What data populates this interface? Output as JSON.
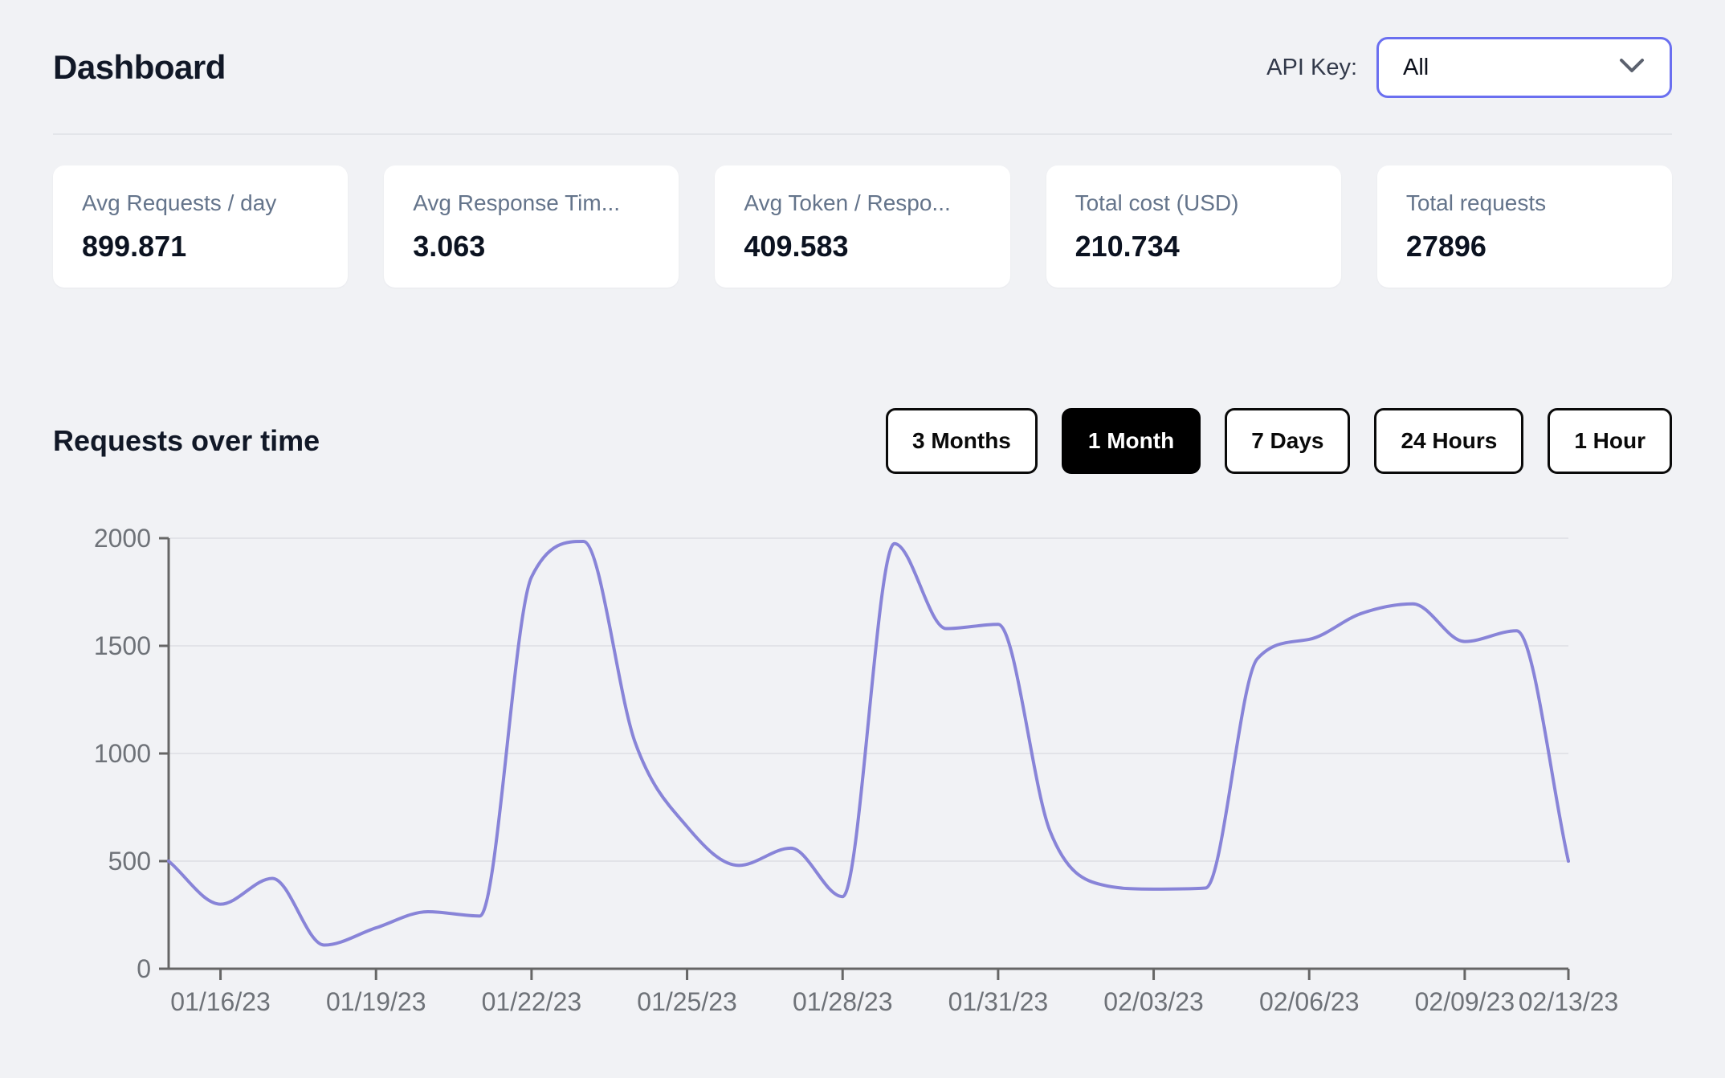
{
  "header": {
    "title": "Dashboard",
    "api_key_label": "API Key:",
    "api_key_value": "All"
  },
  "stats": [
    {
      "label": "Avg Requests / day",
      "value": "899.871"
    },
    {
      "label": "Avg Response Tim...",
      "value": "3.063"
    },
    {
      "label": "Avg Token / Respo...",
      "value": "409.583"
    },
    {
      "label": "Total cost (USD)",
      "value": "210.734"
    },
    {
      "label": "Total requests",
      "value": "27896"
    }
  ],
  "section": {
    "title": "Requests over time"
  },
  "time_ranges": [
    {
      "label": "3 Months",
      "active": false
    },
    {
      "label": "1 Month",
      "active": true
    },
    {
      "label": "7 Days",
      "active": false
    },
    {
      "label": "24 Hours",
      "active": false
    },
    {
      "label": "1 Hour",
      "active": false
    }
  ],
  "chart_data": {
    "type": "line",
    "series_name": "Requests",
    "x": [
      "01/15/23",
      "01/16/23",
      "01/17/23",
      "01/18/23",
      "01/19/23",
      "01/20/23",
      "01/21/23",
      "01/22/23",
      "01/23/23",
      "01/24/23",
      "01/25/23",
      "01/26/23",
      "01/27/23",
      "01/28/23",
      "01/29/23",
      "01/30/23",
      "01/31/23",
      "02/01/23",
      "02/02/23",
      "02/03/23",
      "02/04/23",
      "02/05/23",
      "02/06/23",
      "02/07/23",
      "02/08/23",
      "02/09/23",
      "02/11/23",
      "02/13/23"
    ],
    "values": [
      500,
      300,
      420,
      110,
      190,
      265,
      245,
      1820,
      1985,
      1050,
      660,
      480,
      560,
      335,
      1975,
      1580,
      1600,
      640,
      390,
      370,
      375,
      1440,
      1530,
      1650,
      1695,
      1520,
      1570,
      500
    ],
    "ylim": [
      0,
      2000
    ],
    "yticks": [
      0,
      500,
      1000,
      1500,
      2000
    ],
    "xtick_indices": [
      1,
      4,
      7,
      10,
      13,
      16,
      19,
      22,
      25,
      27
    ],
    "xtick_labels": [
      "01/16/23",
      "01/19/23",
      "01/22/23",
      "01/25/23",
      "01/28/23",
      "01/31/23",
      "02/03/23",
      "02/06/23",
      "02/09/23",
      "02/13/23"
    ],
    "grid": "horizontal-only",
    "legend": "none",
    "line_color": "#8884d8",
    "axis_color": "#666666",
    "grid_color": "#e2e3e8",
    "tick_label_color": "#6e7278"
  },
  "colors": {
    "background": "#f1f2f5",
    "card_background": "#ffffff",
    "accent_indigo": "#6a6ff0",
    "button_active_bg": "#000000",
    "title_text": "#111827",
    "muted_text": "#64748b"
  },
  "icons": {
    "chevron_down": "chevron-down"
  }
}
